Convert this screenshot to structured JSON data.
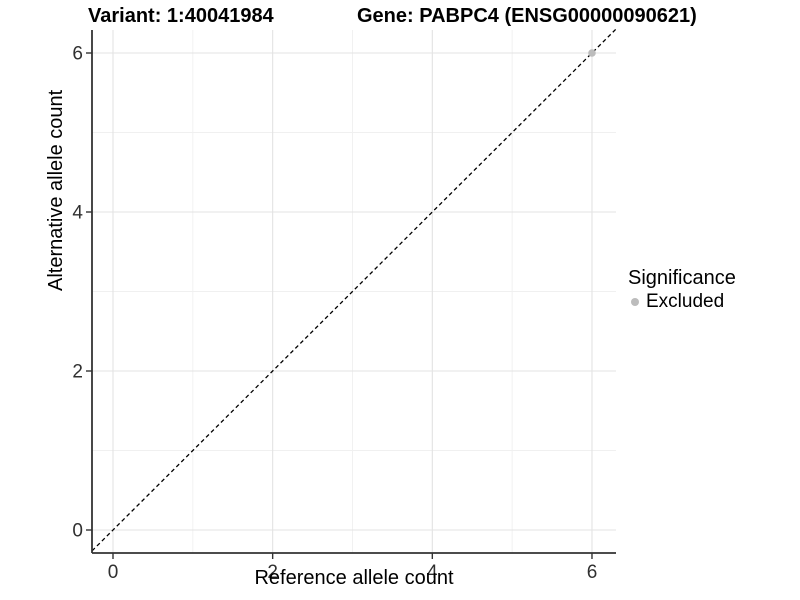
{
  "chart_data": {
    "type": "scatter",
    "titles": {
      "left": "Variant: 1:40041984",
      "right": "Gene: PABPC4 (ENSG00000090621)"
    },
    "xlabel": "Reference allele count",
    "ylabel": "Alternative allele count",
    "x_ticks": [
      0,
      2,
      4,
      6
    ],
    "y_ticks": [
      0,
      2,
      4,
      6
    ],
    "x_minor_ticks": [
      1,
      3,
      5
    ],
    "y_minor_ticks": [
      1,
      3,
      5
    ],
    "xlim": [
      -0.3,
      6.3
    ],
    "ylim": [
      -0.3,
      6.3
    ],
    "grid": "on",
    "identity_line": {
      "style": "dashed",
      "slope": 1,
      "intercept": 0,
      "color": "#000000"
    },
    "points": [
      {
        "x": 6,
        "y": 6,
        "series": "Excluded"
      }
    ],
    "legend": {
      "title": "Significance",
      "position": "right",
      "entries": [
        {
          "label": "Excluded",
          "color": "#bcbcbc"
        }
      ]
    },
    "colors": {
      "point": "#bcbcbc",
      "grid_major": "#e3e3e3",
      "grid_minor": "#f0f0f0",
      "axis_line": "#333333",
      "tick_label": "#303030",
      "background": "#ffffff"
    }
  }
}
